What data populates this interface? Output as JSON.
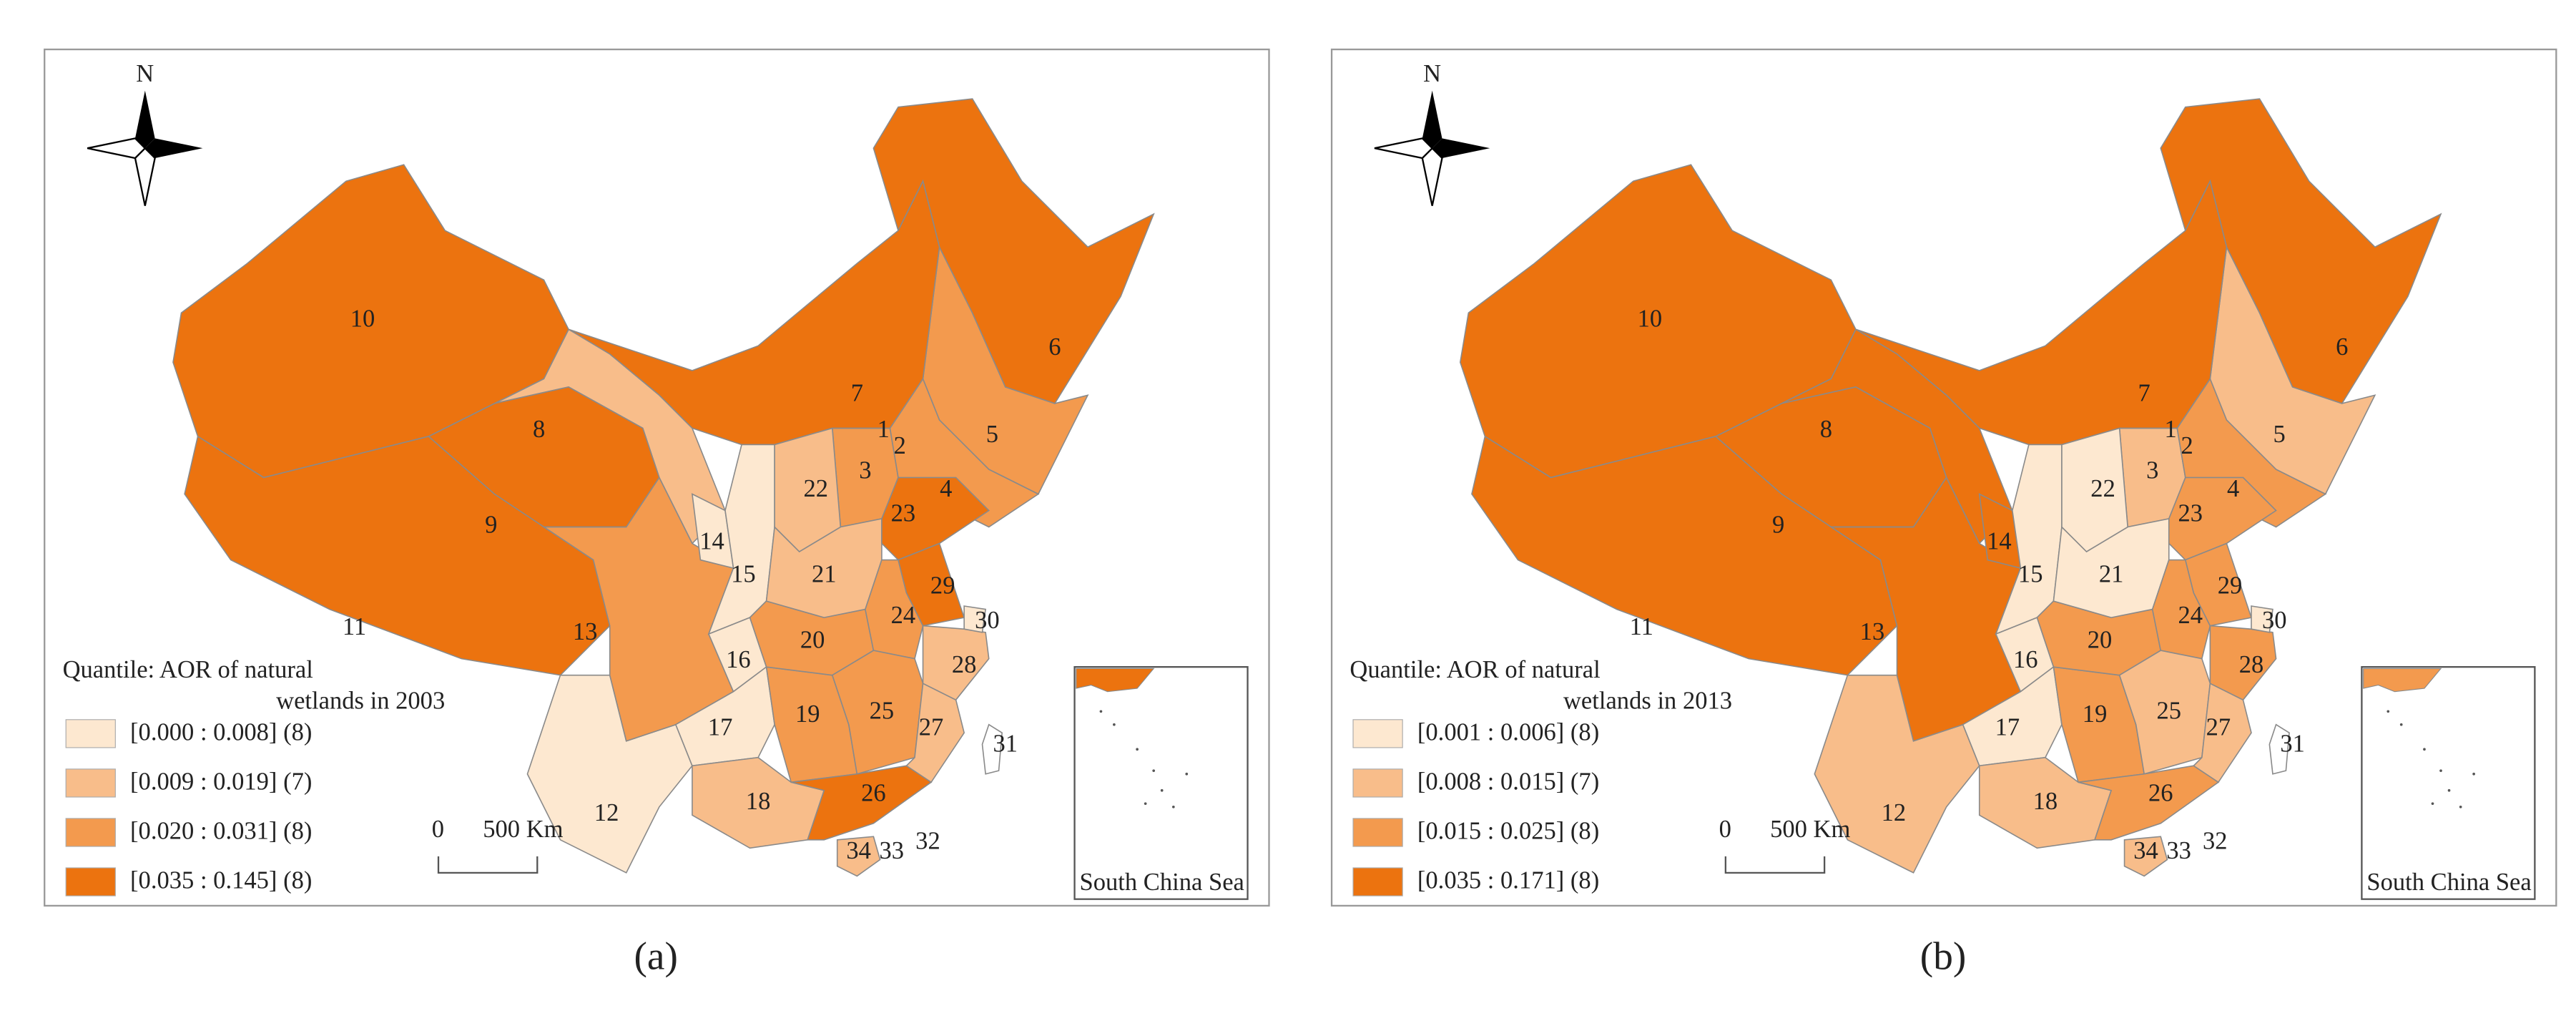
{
  "panels": [
    {
      "caption": "(a)",
      "north": "N",
      "legend_title": [
        "Quantile: AOR of natural",
        "wetlands in 2003"
      ],
      "legend": [
        {
          "label": "[0.000 : 0.008] (8)",
          "color": "#fde8d0"
        },
        {
          "label": "[0.009 : 0.019] (7)",
          "color": "#f8bd8a"
        },
        {
          "label": "[0.020 : 0.031] (8)",
          "color": "#f39a4e"
        },
        {
          "label": "[0.035 : 0.145] (8)",
          "color": "#ec730f"
        }
      ],
      "scale": [
        "0",
        "500 Km"
      ],
      "inset_label": "South China Sea",
      "regions": [
        {
          "label": "1",
          "fill": "#fde8d0"
        },
        {
          "label": "2",
          "fill": "#fde8d0"
        },
        {
          "label": "3",
          "fill": "#f39a4e"
        },
        {
          "label": "4",
          "fill": "#f39a4e"
        },
        {
          "label": "5",
          "fill": "#f39a4e"
        },
        {
          "label": "6",
          "fill": "#ec730f"
        },
        {
          "label": "7",
          "fill": "#ec730f"
        },
        {
          "label": "8",
          "fill": "#f8bd8a"
        },
        {
          "label": "9",
          "fill": "#ec730f"
        },
        {
          "label": "10",
          "fill": "#ec730f"
        },
        {
          "label": "11",
          "fill": "#ec730f"
        },
        {
          "label": "12",
          "fill": "#fde8d0"
        },
        {
          "label": "13",
          "fill": "#f39a4e"
        },
        {
          "label": "14",
          "fill": "#fde8d0"
        },
        {
          "label": "15",
          "fill": "#fde8d0"
        },
        {
          "label": "16",
          "fill": "#fde8d0"
        },
        {
          "label": "17",
          "fill": "#fde8d0"
        },
        {
          "label": "18",
          "fill": "#f8bd8a"
        },
        {
          "label": "19",
          "fill": "#f39a4e"
        },
        {
          "label": "20",
          "fill": "#f39a4e"
        },
        {
          "label": "21",
          "fill": "#f8bd8a"
        },
        {
          "label": "22",
          "fill": "#f8bd8a"
        },
        {
          "label": "23",
          "fill": "#ec730f"
        },
        {
          "label": "24",
          "fill": "#f39a4e"
        },
        {
          "label": "25",
          "fill": "#f39a4e"
        },
        {
          "label": "26",
          "fill": "#ec730f"
        },
        {
          "label": "27",
          "fill": "#f8bd8a"
        },
        {
          "label": "28",
          "fill": "#f8bd8a"
        },
        {
          "label": "29",
          "fill": "#ec730f"
        },
        {
          "label": "30",
          "fill": "#fde8d0"
        },
        {
          "label": "31",
          "fill": "#ffffff"
        },
        {
          "label": "32"
        },
        {
          "label": "33"
        },
        {
          "label": "34",
          "fill": "#f8bd8a"
        }
      ]
    },
    {
      "caption": "(b)",
      "north": "N",
      "legend_title": [
        "Quantile: AOR of natural",
        "wetlands in 2013"
      ],
      "legend": [
        {
          "label": "[0.001 : 0.006] (8)",
          "color": "#fde8d0"
        },
        {
          "label": "[0.008 : 0.015] (7)",
          "color": "#f8bd8a"
        },
        {
          "label": "[0.015 : 0.025] (8)",
          "color": "#f39a4e"
        },
        {
          "label": "[0.035 : 0.171] (8)",
          "color": "#ec730f"
        }
      ],
      "scale": [
        "0",
        "500 Km"
      ],
      "inset_label": "South China Sea",
      "regions": [
        {
          "label": "1",
          "fill": "#fde8d0"
        },
        {
          "label": "2",
          "fill": "#fde8d0"
        },
        {
          "label": "3",
          "fill": "#f8bd8a"
        },
        {
          "label": "4",
          "fill": "#f39a4e"
        },
        {
          "label": "5",
          "fill": "#f8bd8a"
        },
        {
          "label": "6",
          "fill": "#ec730f"
        },
        {
          "label": "7",
          "fill": "#ec730f"
        },
        {
          "label": "8",
          "fill": "#ec730f"
        },
        {
          "label": "9",
          "fill": "#ec730f"
        },
        {
          "label": "10",
          "fill": "#ec730f"
        },
        {
          "label": "11",
          "fill": "#ec730f"
        },
        {
          "label": "12",
          "fill": "#f8bd8a"
        },
        {
          "label": "13",
          "fill": "#ec730f"
        },
        {
          "label": "14",
          "fill": "#ec730f"
        },
        {
          "label": "15",
          "fill": "#fde8d0"
        },
        {
          "label": "16",
          "fill": "#fde8d0"
        },
        {
          "label": "17",
          "fill": "#fde8d0"
        },
        {
          "label": "18",
          "fill": "#f8bd8a"
        },
        {
          "label": "19",
          "fill": "#f39a4e"
        },
        {
          "label": "20",
          "fill": "#f39a4e"
        },
        {
          "label": "21",
          "fill": "#fde8d0"
        },
        {
          "label": "22",
          "fill": "#fde8d0"
        },
        {
          "label": "23",
          "fill": "#f39a4e"
        },
        {
          "label": "24",
          "fill": "#f39a4e"
        },
        {
          "label": "25",
          "fill": "#f8bd8a"
        },
        {
          "label": "26",
          "fill": "#f39a4e"
        },
        {
          "label": "27",
          "fill": "#f8bd8a"
        },
        {
          "label": "28",
          "fill": "#f39a4e"
        },
        {
          "label": "29",
          "fill": "#f39a4e"
        },
        {
          "label": "30",
          "fill": "#fde8d0"
        },
        {
          "label": "31",
          "fill": "#ffffff"
        },
        {
          "label": "32"
        },
        {
          "label": "33"
        },
        {
          "label": "34",
          "fill": "#f8bd8a"
        }
      ]
    }
  ]
}
